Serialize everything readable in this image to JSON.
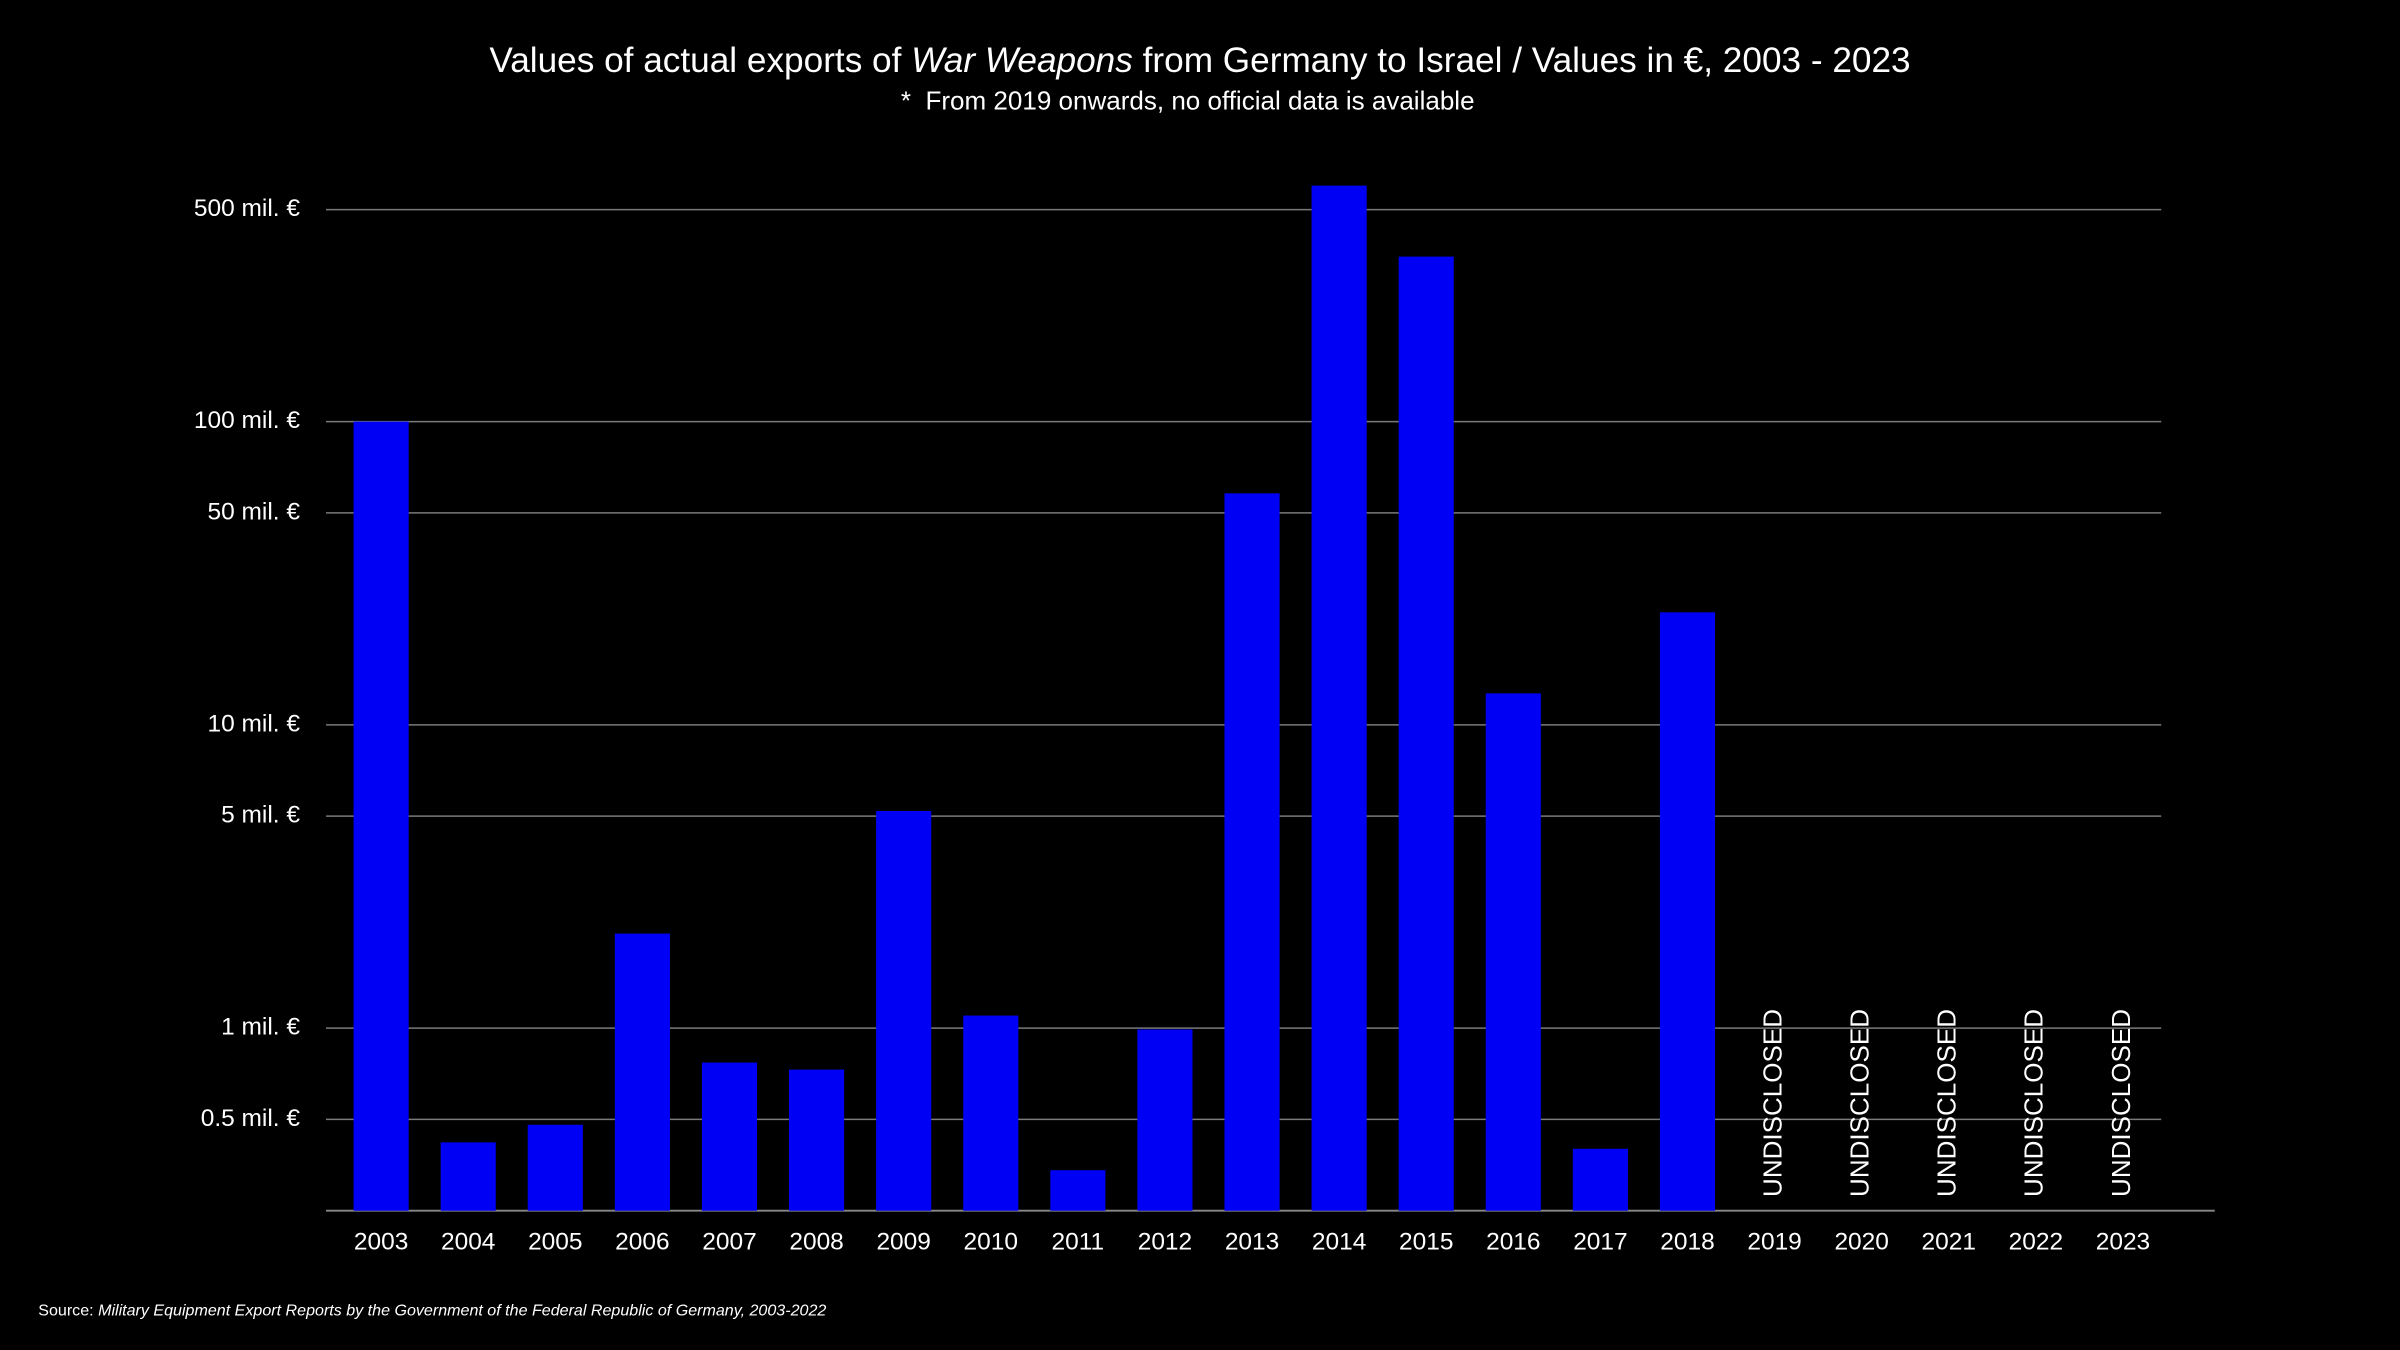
{
  "chart_data": {
    "type": "bar",
    "title": [
      "Values of actual exports of ",
      "War Weapons",
      " from Germany to Israel / Values in €, 2003 - 2023"
    ],
    "subtitle": "*  From 2019 onwards, no official data is available",
    "categories": [
      "2003",
      "2004",
      "2005",
      "2006",
      "2007",
      "2008",
      "2009",
      "2010",
      "2011",
      "2012",
      "2013",
      "2014",
      "2015",
      "2016",
      "2017",
      "2018",
      "2019",
      "2020",
      "2021",
      "2022",
      "2023"
    ],
    "values": [
      100,
      0.42,
      0.48,
      2.05,
      0.77,
      0.73,
      5.2,
      1.1,
      0.34,
      0.99,
      58,
      600,
      350,
      12.7,
      0.4,
      23.5,
      null,
      null,
      null,
      null,
      null
    ],
    "value_labels": [
      null,
      null,
      null,
      null,
      null,
      null,
      null,
      null,
      null,
      null,
      null,
      null,
      null,
      null,
      null,
      null,
      "UNDISCLOSED",
      "UNDISCLOSED",
      "UNDISCLOSED",
      "UNDISCLOSED",
      "UNDISCLOSED"
    ],
    "color": "#0000f5",
    "log_scale": true,
    "ylim": [
      0.25,
      700
    ],
    "yticks": [
      {
        "value": 0.5,
        "label": "0.5 mil. €"
      },
      {
        "value": 1,
        "label": "1 mil. €"
      },
      {
        "value": 5,
        "label": "5 mil. €"
      },
      {
        "value": 10,
        "label": "10 mil. €"
      },
      {
        "value": 50,
        "label": "50 mil. €"
      },
      {
        "value": 100,
        "label": "100 mil. €"
      },
      {
        "value": 500,
        "label": "500 mil. €"
      }
    ],
    "grid": true,
    "source": {
      "label": "Source:",
      "text": "Military Equipment Export Reports by the Government of the Federal Republic of Germany, 2003-2022"
    }
  }
}
